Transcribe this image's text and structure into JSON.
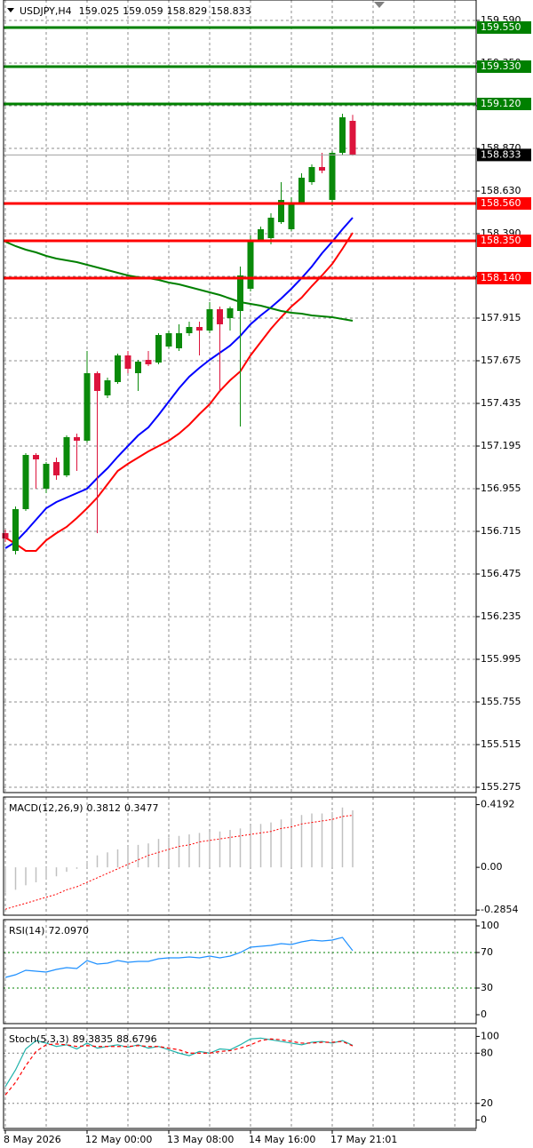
{
  "chart_data": [
    {
      "type": "candlestick",
      "title": "USDJPY,H4",
      "categories": [
        "8 May 2026",
        null,
        null,
        null,
        null,
        null,
        null,
        null,
        "12 May 00:00",
        null,
        null,
        null,
        null,
        null,
        null,
        null,
        "13 May 08:00",
        null,
        null,
        null,
        null,
        null,
        null,
        null,
        "14 May 16:00",
        null,
        null,
        null,
        null,
        null,
        null,
        null,
        "17 May 21:01",
        null,
        null
      ],
      "open": [
        156.705,
        156.605,
        156.84,
        157.145,
        156.955,
        157.105,
        157.03,
        157.245,
        157.225,
        157.605,
        157.48,
        157.555,
        157.705,
        157.605,
        157.68,
        157.665,
        157.755,
        157.745,
        157.83,
        157.865,
        157.845,
        157.965,
        157.915,
        157.955,
        158.08,
        158.355,
        158.365,
        158.455,
        158.415,
        158.565,
        158.68,
        158.765,
        158.58,
        158.845,
        159.025
      ],
      "high": [
        156.725,
        156.855,
        157.155,
        157.155,
        157.105,
        157.13,
        157.255,
        157.265,
        157.73,
        157.615,
        157.58,
        157.715,
        157.73,
        157.68,
        157.73,
        157.83,
        157.845,
        157.88,
        157.895,
        157.895,
        158.005,
        157.98,
        157.98,
        158.205,
        158.38,
        158.43,
        158.505,
        158.68,
        158.595,
        158.73,
        158.78,
        158.845,
        158.855,
        159.065,
        159.059
      ],
      "low": [
        156.655,
        156.585,
        156.83,
        156.955,
        156.93,
        157.005,
        157.02,
        157.055,
        157.215,
        156.705,
        157.465,
        157.545,
        157.605,
        157.505,
        157.645,
        157.655,
        157.745,
        157.73,
        157.815,
        157.705,
        157.83,
        157.505,
        157.845,
        157.305,
        158.065,
        158.345,
        158.33,
        158.445,
        158.405,
        158.555,
        158.665,
        158.73,
        158.545,
        158.83,
        158.829
      ],
      "close": [
        156.675,
        156.84,
        157.145,
        157.12,
        157.095,
        157.03,
        157.245,
        157.225,
        157.605,
        157.505,
        157.565,
        157.705,
        157.63,
        157.67,
        157.655,
        157.82,
        157.83,
        157.83,
        157.865,
        157.845,
        157.965,
        157.88,
        157.97,
        158.155,
        158.355,
        158.415,
        158.48,
        158.58,
        158.565,
        158.705,
        158.765,
        158.745,
        158.845,
        159.045,
        158.833
      ],
      "up_color": "#0a8a0a",
      "down_color": "#dc143c",
      "last_price_color": "#000000",
      "series": [
        {
          "color": "#0000ff",
          "values": [
            156.62,
            156.655,
            156.715,
            156.78,
            156.845,
            156.88,
            156.905,
            156.93,
            156.955,
            157.015,
            157.07,
            157.135,
            157.195,
            157.255,
            157.3,
            157.37,
            157.445,
            157.52,
            157.585,
            157.635,
            157.68,
            157.72,
            157.76,
            157.815,
            157.88,
            157.93,
            157.975,
            158.025,
            158.08,
            158.14,
            158.205,
            158.28,
            158.345,
            158.415,
            158.48
          ]
        },
        {
          "color": "#ff0000",
          "values": [
            156.68,
            156.645,
            156.605,
            156.605,
            156.665,
            156.705,
            156.74,
            156.79,
            156.845,
            156.905,
            156.98,
            157.055,
            157.095,
            157.13,
            157.165,
            157.195,
            157.225,
            157.265,
            157.315,
            157.375,
            157.43,
            157.505,
            157.565,
            157.615,
            157.705,
            157.78,
            157.855,
            157.92,
            157.98,
            158.03,
            158.095,
            158.155,
            158.22,
            158.305,
            158.395
          ]
        },
        {
          "color": "#008000",
          "values": [
            158.345,
            158.32,
            158.3,
            158.285,
            158.265,
            158.25,
            158.24,
            158.23,
            158.215,
            158.2,
            158.185,
            158.17,
            158.155,
            158.145,
            158.14,
            158.13,
            158.115,
            158.105,
            158.09,
            158.075,
            158.06,
            158.045,
            158.025,
            158.005,
            157.995,
            157.985,
            157.97,
            157.955,
            157.945,
            157.94,
            157.93,
            157.925,
            157.92,
            157.91,
            157.9
          ]
        }
      ],
      "levels": [
        {
          "value": 159.55,
          "label": "159.550",
          "color": "#008000"
        },
        {
          "value": 159.33,
          "label": "159.330",
          "color": "#008000"
        },
        {
          "value": 159.12,
          "label": "159.120",
          "color": "#008000"
        },
        {
          "value": 158.56,
          "label": "158.560",
          "color": "#ff0000"
        },
        {
          "value": 158.35,
          "label": "158.350",
          "color": "#ff0000"
        },
        {
          "value": 158.14,
          "label": "158.140",
          "color": "#ff0000"
        }
      ],
      "ylim": [
        155.245,
        159.705
      ],
      "yticks": [
        {
          "value": 159.59,
          "label": "159.590"
        },
        {
          "value": 159.35,
          "label": "159.350"
        },
        {
          "value": 159.11,
          "label": "159.110"
        },
        {
          "value": 158.87,
          "label": "158.870"
        },
        {
          "value": 158.63,
          "label": "158.630"
        },
        {
          "value": 158.39,
          "label": "158.390"
        },
        {
          "value": 158.15,
          "label": "158.150"
        },
        157.915,
        157.675,
        157.435,
        157.195,
        156.955,
        156.715,
        156.475,
        156.235,
        155.995,
        155.755,
        155.515,
        155.275
      ],
      "grid": true
    },
    {
      "type": "macd",
      "title": "MACD(12,26,9)",
      "series": [
        {
          "style": "histogram",
          "color": "#c0c0c0",
          "values": [
            -0.17,
            -0.15,
            -0.12,
            -0.1,
            -0.08,
            -0.06,
            -0.03,
            -0.01,
            0.04,
            0.08,
            0.1,
            0.12,
            0.14,
            0.15,
            0.16,
            0.19,
            0.2,
            0.21,
            0.22,
            0.23,
            0.24,
            0.24,
            0.25,
            0.26,
            0.28,
            0.29,
            0.3,
            0.32,
            0.33,
            0.35,
            0.36,
            0.36,
            0.37,
            0.4,
            0.3812
          ]
        },
        {
          "style": "dotted",
          "color": "#ff0000",
          "values": [
            -0.28,
            -0.26,
            -0.24,
            -0.22,
            -0.2,
            -0.18,
            -0.15,
            -0.13,
            -0.1,
            -0.07,
            -0.04,
            -0.01,
            0.02,
            0.05,
            0.08,
            0.1,
            0.12,
            0.14,
            0.15,
            0.17,
            0.18,
            0.19,
            0.2,
            0.21,
            0.22,
            0.23,
            0.24,
            0.26,
            0.27,
            0.29,
            0.3,
            0.31,
            0.32,
            0.34,
            0.3477
          ]
        }
      ],
      "ylim": [
        -0.32,
        0.47
      ],
      "yticks": [
        0.4192,
        {
          "value": 0,
          "label": "0.00"
        },
        -0.2854
      ]
    },
    {
      "type": "line",
      "title": "RSI(14)",
      "series": [
        {
          "style": "solid",
          "color": "#1e90ff",
          "values": [
            42,
            45,
            50,
            49,
            48,
            51,
            53,
            52,
            61,
            57,
            58,
            61,
            59,
            60,
            60,
            63,
            64,
            64,
            65,
            64,
            66,
            64,
            66,
            70,
            76,
            77,
            78,
            80,
            79,
            82,
            84,
            83,
            84,
            87,
            72.097
          ],
          "value_labels": [
            null,
            null,
            null,
            null,
            null,
            null,
            null,
            null,
            null,
            null,
            null,
            null,
            null,
            null,
            null,
            null,
            null,
            null,
            null,
            null,
            null,
            null,
            null,
            null,
            null,
            null,
            null,
            null,
            null,
            null,
            null,
            null,
            null,
            null,
            "72.0970"
          ]
        }
      ],
      "levels": [
        70,
        30
      ],
      "level_color": "#008000",
      "ylim": [
        -10,
        107
      ],
      "yticks": [
        100,
        70,
        30,
        0
      ]
    },
    {
      "type": "line",
      "title": "Stoch(5,3,3)",
      "series": [
        {
          "style": "solid",
          "color": "#20b2aa",
          "values": [
            40,
            60,
            85,
            95,
            92,
            88,
            90,
            85,
            92,
            86,
            88,
            90,
            87,
            90,
            86,
            88,
            84,
            80,
            77,
            82,
            80,
            85,
            84,
            90,
            97,
            98,
            96,
            94,
            92,
            90,
            93,
            94,
            92,
            95,
            89.3835
          ]
        },
        {
          "style": "dashed",
          "color": "#ff0000",
          "values": [
            30,
            45,
            65,
            82,
            90,
            91,
            90,
            88,
            89,
            88,
            88,
            88,
            88,
            89,
            88,
            88,
            86,
            84,
            80,
            80,
            80,
            82,
            83,
            86,
            90,
            95,
            97,
            96,
            94,
            92,
            92,
            93,
            93,
            94,
            88.6796
          ]
        }
      ],
      "levels": [
        80,
        20
      ],
      "level_color": "#808080",
      "ylim": [
        -10,
        110
      ],
      "yticks": [
        100,
        80,
        20,
        0
      ]
    }
  ]
}
